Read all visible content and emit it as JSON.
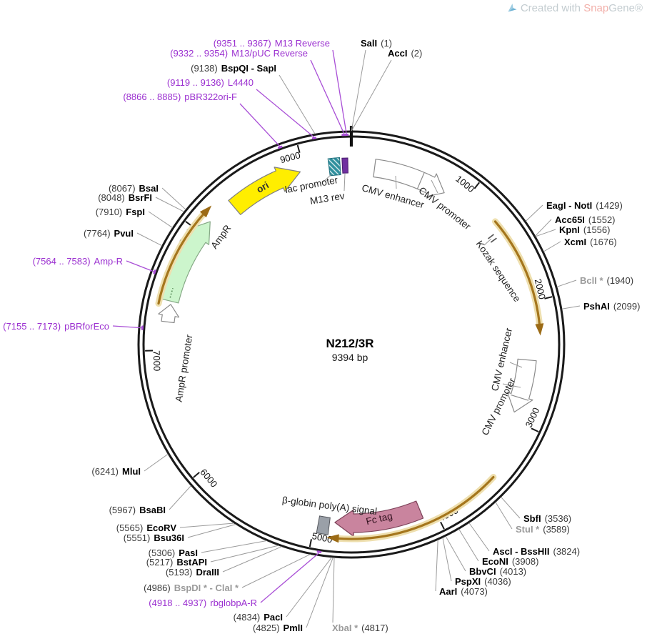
{
  "watermark": {
    "prefix": "Created with ",
    "brand_snap": "Snap",
    "brand_gene": "Gene",
    "reg": "®"
  },
  "plasmid": {
    "name": "N212/3R",
    "size": "9394 bp",
    "length_bp": 9394
  },
  "ticks": [
    {
      "bp": 1000,
      "label": "1000"
    },
    {
      "bp": 2000,
      "label": "2000"
    },
    {
      "bp": 3000,
      "label": "3000"
    },
    {
      "bp": 4000,
      "label": "4000"
    },
    {
      "bp": 5000,
      "label": "5000"
    },
    {
      "bp": 6000,
      "label": "6000"
    },
    {
      "bp": 7000,
      "label": "7000"
    },
    {
      "bp": 8000,
      "label": "8000"
    },
    {
      "bp": 9000,
      "label": "9000"
    }
  ],
  "sites": [
    {
      "pos_label": "(9351 .. 9367)",
      "name": "M13 Reverse",
      "bp": 9359,
      "bp_start": 9351,
      "bp_end": 9367,
      "kind": "primer"
    },
    {
      "pos_label": "(9332 .. 9354)",
      "name": "M13/pUC Reverse",
      "bp": 9343,
      "bp_start": 9332,
      "bp_end": 9354,
      "kind": "primer"
    },
    {
      "pos_label": "(9138)",
      "name": "BspQI - SapI",
      "bp": 9138,
      "kind": "enzyme"
    },
    {
      "pos_label": "(9119 .. 9136)",
      "name": "L4440",
      "bp": 9127,
      "bp_start": 9119,
      "bp_end": 9136,
      "kind": "primer"
    },
    {
      "pos_label": "(8866 .. 8885)",
      "name": "pBR322ori-F",
      "bp": 8875,
      "bp_start": 8866,
      "bp_end": 8885,
      "kind": "primer"
    },
    {
      "pos_label": "(1)",
      "name": "SalI",
      "bp": 1,
      "kind": "enzyme"
    },
    {
      "pos_label": "(2)",
      "name": "AccI",
      "bp": 2,
      "kind": "enzyme"
    },
    {
      "pos_label": "(1429)",
      "name": "EagI - NotI",
      "bp": 1429,
      "kind": "enzyme"
    },
    {
      "pos_label": "(1552)",
      "name": "Acc65I",
      "bp": 1552,
      "kind": "enzyme"
    },
    {
      "pos_label": "(1556)",
      "name": "KpnI",
      "bp": 1556,
      "kind": "enzyme"
    },
    {
      "pos_label": "(1676)",
      "name": "XcmI",
      "bp": 1676,
      "kind": "enzyme"
    },
    {
      "pos_label": "(1940)",
      "name": "BclI *",
      "bp": 1940,
      "kind": "enzyme-muted"
    },
    {
      "pos_label": "(2099)",
      "name": "PshAI",
      "bp": 2099,
      "kind": "enzyme"
    },
    {
      "pos_label": "(3536)",
      "name": "SbfI",
      "bp": 3536,
      "kind": "enzyme"
    },
    {
      "pos_label": "(3589)",
      "name": "StuI *",
      "bp": 3589,
      "kind": "enzyme-muted"
    },
    {
      "pos_label": "(3824)",
      "name": "AscI - BssHII",
      "bp": 3824,
      "kind": "enzyme"
    },
    {
      "pos_label": "(3908)",
      "name": "EcoNI",
      "bp": 3908,
      "kind": "enzyme"
    },
    {
      "pos_label": "(4013)",
      "name": "BbvCI",
      "bp": 4013,
      "kind": "enzyme"
    },
    {
      "pos_label": "(4036)",
      "name": "PspXI",
      "bp": 4036,
      "kind": "enzyme"
    },
    {
      "pos_label": "(4073)",
      "name": "AarI",
      "bp": 4073,
      "kind": "enzyme"
    },
    {
      "pos_label": "(4817)",
      "name": "XbaI *",
      "bp": 4817,
      "kind": "enzyme-muted"
    },
    {
      "pos_label": "(4825)",
      "name": "PmlI",
      "bp": 4825,
      "kind": "enzyme"
    },
    {
      "pos_label": "(4834)",
      "name": "PacI",
      "bp": 4834,
      "kind": "enzyme"
    },
    {
      "pos_label": "(4918 .. 4937)",
      "name": "rbglobpA-R",
      "bp": 4927,
      "bp_start": 4918,
      "bp_end": 4937,
      "kind": "primer"
    },
    {
      "pos_label": "(4986)",
      "name": "BspDI * - ClaI *",
      "bp": 4986,
      "kind": "enzyme-muted"
    },
    {
      "pos_label": "(5193)",
      "name": "DraIII",
      "bp": 5193,
      "kind": "enzyme"
    },
    {
      "pos_label": "(5217)",
      "name": "BstAPI",
      "bp": 5217,
      "kind": "enzyme"
    },
    {
      "pos_label": "(5306)",
      "name": "PasI",
      "bp": 5306,
      "kind": "enzyme"
    },
    {
      "pos_label": "(5551)",
      "name": "Bsu36I",
      "bp": 5551,
      "kind": "enzyme"
    },
    {
      "pos_label": "(5565)",
      "name": "EcoRV",
      "bp": 5565,
      "kind": "enzyme"
    },
    {
      "pos_label": "(5967)",
      "name": "BsaBI",
      "bp": 5967,
      "kind": "enzyme"
    },
    {
      "pos_label": "(6241)",
      "name": "MluI",
      "bp": 6241,
      "kind": "enzyme"
    },
    {
      "pos_label": "(7155 .. 7173)",
      "name": "pBRforEco",
      "bp": 7164,
      "bp_start": 7155,
      "bp_end": 7173,
      "kind": "primer"
    },
    {
      "pos_label": "(7564 .. 7583)",
      "name": "Amp-R",
      "bp": 7574,
      "bp_start": 7564,
      "bp_end": 7583,
      "kind": "primer"
    },
    {
      "pos_label": "(7764)",
      "name": "PvuI",
      "bp": 7764,
      "kind": "enzyme"
    },
    {
      "pos_label": "(7910)",
      "name": "FspI",
      "bp": 7910,
      "kind": "enzyme"
    },
    {
      "pos_label": "(8048)",
      "name": "BsrFI",
      "bp": 8048,
      "kind": "enzyme"
    },
    {
      "pos_label": "(8067)",
      "name": "BsaI",
      "bp": 8067,
      "kind": "enzyme"
    }
  ],
  "features": [
    {
      "label": "ori",
      "color": "#ffee00"
    },
    {
      "label": "lac promoter",
      "color": "#2f8f9d"
    },
    {
      "label": "M13 rev",
      "color": "#7030a0"
    },
    {
      "label": "CMV enhancer",
      "color": "#ffffff"
    },
    {
      "label": "CMV promoter",
      "color": "#ffffff"
    },
    {
      "label": "Kozak sequence",
      "color": "#555555"
    },
    {
      "label": "CMV enhancer",
      "color": "#ffffff"
    },
    {
      "label": "CMV promoter",
      "color": "#ffffff"
    },
    {
      "label": "Fc tag",
      "color": "#c9849e"
    },
    {
      "label": "β-globin poly(A) signal",
      "color": "#9aa0a8"
    },
    {
      "label": "AmpR",
      "color": "#ccf5cc"
    },
    {
      "label": "AmpR promoter",
      "color": "#ffffff"
    }
  ],
  "colors": {
    "backbone": "#1a1a1a",
    "callout": "#9b9b9b",
    "primer": "#9b30d0",
    "primer_line": "#a94fd6",
    "enzyme_name": "#000000",
    "muted_name": "#9a9a9a",
    "position_text": "#3a3a3a",
    "tick": "#1a1a1a",
    "arc_read": "#a5761d",
    "arc_glow": "#eedfae",
    "arc_head": "#9c6b16"
  }
}
